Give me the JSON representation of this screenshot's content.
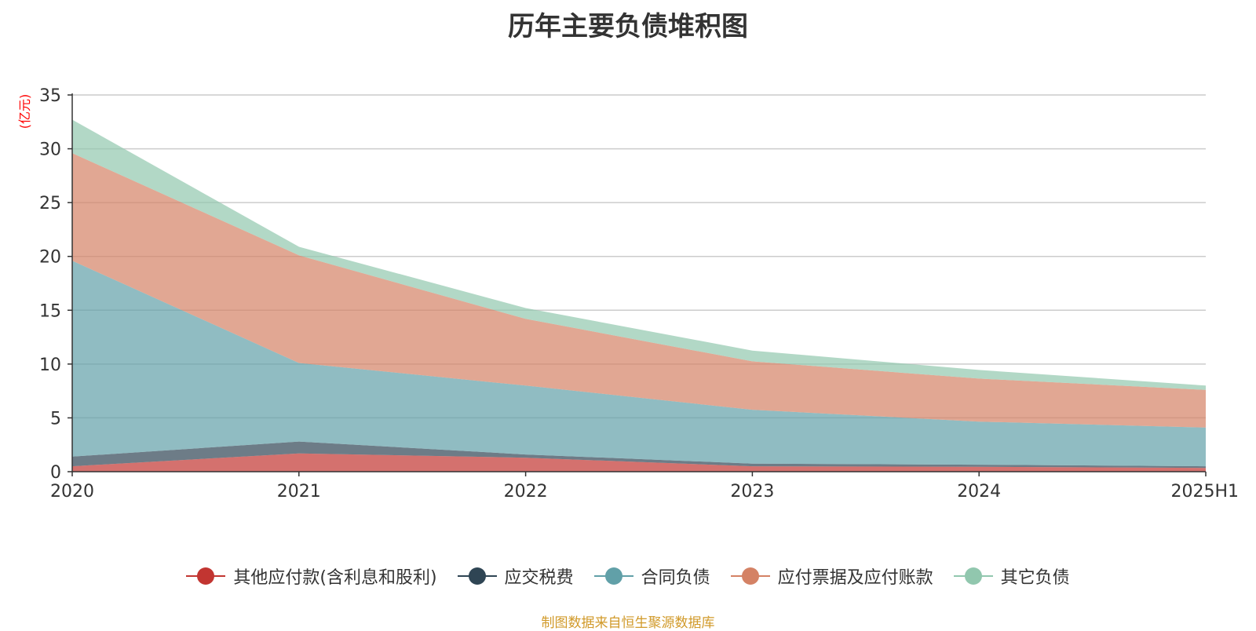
{
  "chart_data": {
    "type": "area",
    "stacked": true,
    "title": "历年主要负债堆积图",
    "unit_label": "(亿元)",
    "categories": [
      "2020",
      "2021",
      "2022",
      "2023",
      "2024",
      "2025H1"
    ],
    "ylim": [
      0,
      35
    ],
    "yticks": [
      0,
      5,
      10,
      15,
      20,
      25,
      30,
      35
    ],
    "grid": true,
    "legend_position": "bottom",
    "series": [
      {
        "name": "其他应付款(含利息和股利)",
        "values": [
          0.5,
          1.7,
          1.3,
          0.5,
          0.45,
          0.35
        ],
        "color": "#c23531"
      },
      {
        "name": "应交税费",
        "values": [
          0.9,
          1.1,
          0.3,
          0.25,
          0.2,
          0.15
        ],
        "color": "#2f4554"
      },
      {
        "name": "合同负债",
        "values": [
          18.2,
          7.3,
          6.4,
          5.0,
          4.0,
          3.6
        ],
        "color": "#61a0a8"
      },
      {
        "name": "应付票据及应付账款",
        "values": [
          10.0,
          10.0,
          6.2,
          4.5,
          4.0,
          3.5
        ],
        "color": "#d48265"
      },
      {
        "name": "其它负债",
        "values": [
          3.1,
          0.8,
          1.0,
          1.0,
          0.8,
          0.4
        ],
        "color": "#91c7ae"
      }
    ]
  },
  "source_note": "制图数据来自恒生聚源数据库",
  "colors": {
    "axis": "#333333",
    "grid": "#cccccc",
    "unit_label": "#ff0000"
  }
}
